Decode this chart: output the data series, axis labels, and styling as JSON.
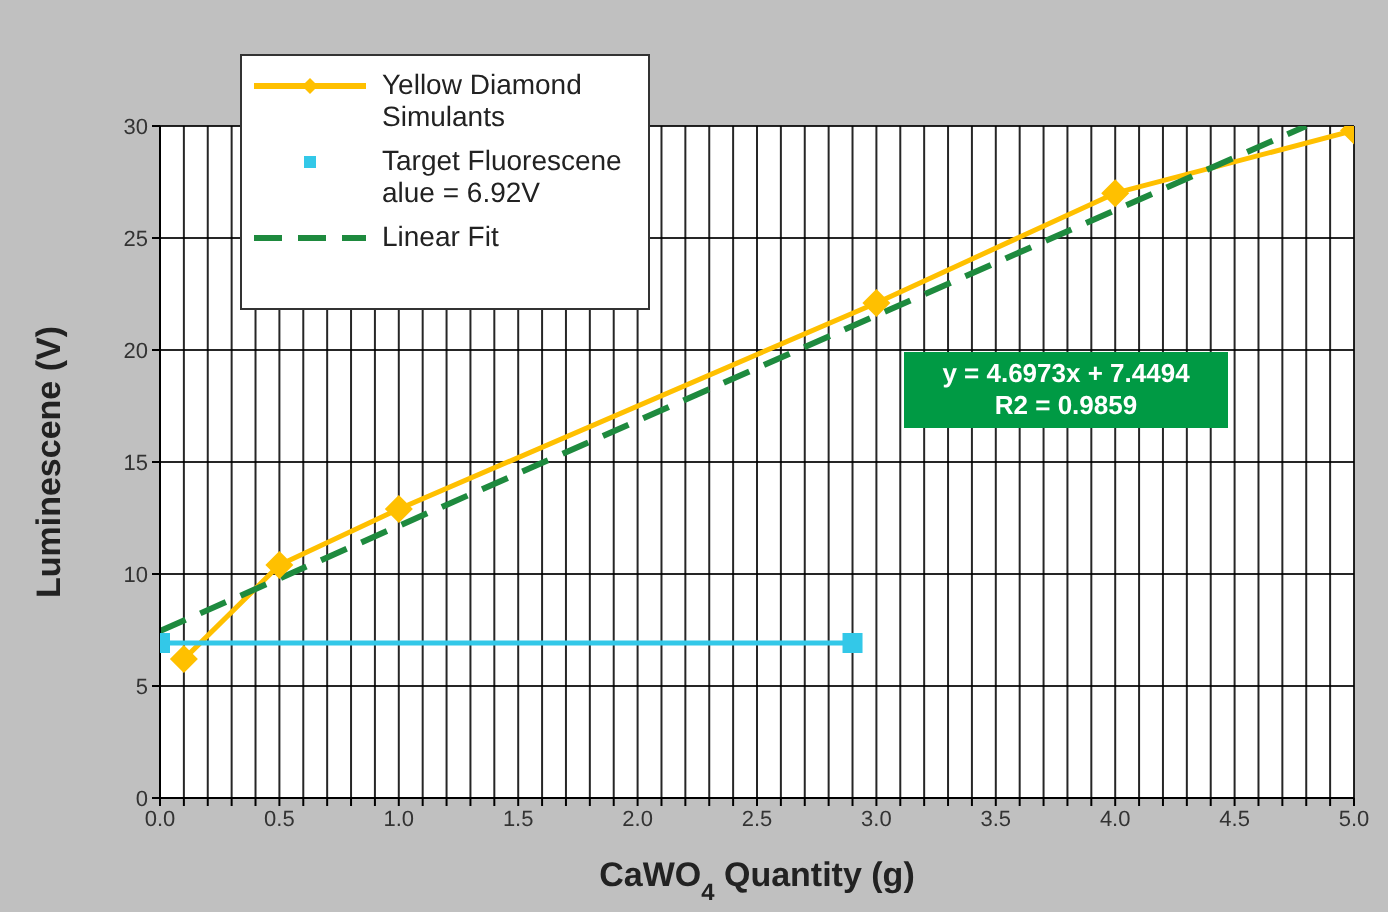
{
  "chart_data": {
    "type": "line",
    "xlabel": "CaWO$_{4}$ Quantity (g)",
    "ylabel": "Luminescene (V)",
    "xlim": [
      0,
      5
    ],
    "ylim": [
      0,
      30
    ],
    "xticks": [
      {
        "value": 0,
        "label": "0.0"
      },
      {
        "value": 0.1,
        "label": null
      },
      {
        "value": 0.2,
        "label": null
      },
      {
        "value": 0.3,
        "label": null
      },
      {
        "value": 0.4,
        "label": null
      },
      {
        "value": 0.5,
        "label": "0.5"
      },
      {
        "value": 0.6,
        "label": null
      },
      {
        "value": 0.7,
        "label": null
      },
      {
        "value": 0.8,
        "label": null
      },
      {
        "value": 0.9,
        "label": null
      },
      {
        "value": 1,
        "label": "1.0"
      },
      {
        "value": 1.1,
        "label": null
      },
      {
        "value": 1.2,
        "label": null
      },
      {
        "value": 1.3,
        "label": null
      },
      {
        "value": 1.4,
        "label": null
      },
      {
        "value": 1.5,
        "label": "1.5"
      },
      {
        "value": 1.6,
        "label": null
      },
      {
        "value": 1.7,
        "label": null
      },
      {
        "value": 1.8,
        "label": null
      },
      {
        "value": 1.9,
        "label": null
      },
      {
        "value": 2,
        "label": "2.0"
      },
      {
        "value": 2.1,
        "label": null
      },
      {
        "value": 2.2,
        "label": null
      },
      {
        "value": 2.3,
        "label": null
      },
      {
        "value": 2.4,
        "label": null
      },
      {
        "value": 2.5,
        "label": "2.5"
      },
      {
        "value": 2.6,
        "label": null
      },
      {
        "value": 2.7,
        "label": null
      },
      {
        "value": 2.8,
        "label": null
      },
      {
        "value": 2.9,
        "label": null
      },
      {
        "value": 3,
        "label": "3.0"
      },
      {
        "value": 3.1,
        "label": null
      },
      {
        "value": 3.2,
        "label": null
      },
      {
        "value": 3.3,
        "label": null
      },
      {
        "value": 3.4,
        "label": null
      },
      {
        "value": 3.5,
        "label": "3.5"
      },
      {
        "value": 3.6,
        "label": null
      },
      {
        "value": 3.7,
        "label": null
      },
      {
        "value": 3.8,
        "label": null
      },
      {
        "value": 3.9,
        "label": null
      },
      {
        "value": 4,
        "label": "4.0"
      },
      {
        "value": 4.1,
        "label": null
      },
      {
        "value": 4.2,
        "label": null
      },
      {
        "value": 4.3,
        "label": null
      },
      {
        "value": 4.4,
        "label": null
      },
      {
        "value": 4.5,
        "label": "4.5"
      },
      {
        "value": 4.6,
        "label": null
      },
      {
        "value": 4.7,
        "label": null
      },
      {
        "value": 4.8,
        "label": null
      },
      {
        "value": 4.9,
        "label": null
      },
      {
        "value": 5,
        "label": "5.0"
      }
    ],
    "yticks": [
      0,
      5,
      10,
      15,
      20,
      25,
      30
    ],
    "grid": true,
    "legend": "top left",
    "annotations": [
      "y = 4.6973x + 7.4494",
      "R2 = 0.9859"
    ],
    "series": [
      {
        "name": "Yellow Diamond Simulants",
        "color": "#ffc000",
        "marker": "diamond",
        "line_style": "solid",
        "x": [
          0.1,
          0.5,
          1,
          3,
          4,
          5
        ],
        "values": [
          6.2,
          10.4,
          12.9,
          22.1,
          27,
          29.8
        ]
      },
      {
        "name": "Target Fluorescene alue = 6.92V",
        "color": "#33c8e8",
        "marker": "square",
        "line_style": "solid",
        "x": [
          0,
          2.9
        ],
        "values": [
          6.92,
          6.92
        ]
      },
      {
        "name": "Linear Fit",
        "color": "#1e8a3e",
        "marker": "none",
        "line_style": "dashed",
        "x": [
          0,
          4.8
        ],
        "values": [
          7.45,
          30
        ]
      }
    ]
  }
}
